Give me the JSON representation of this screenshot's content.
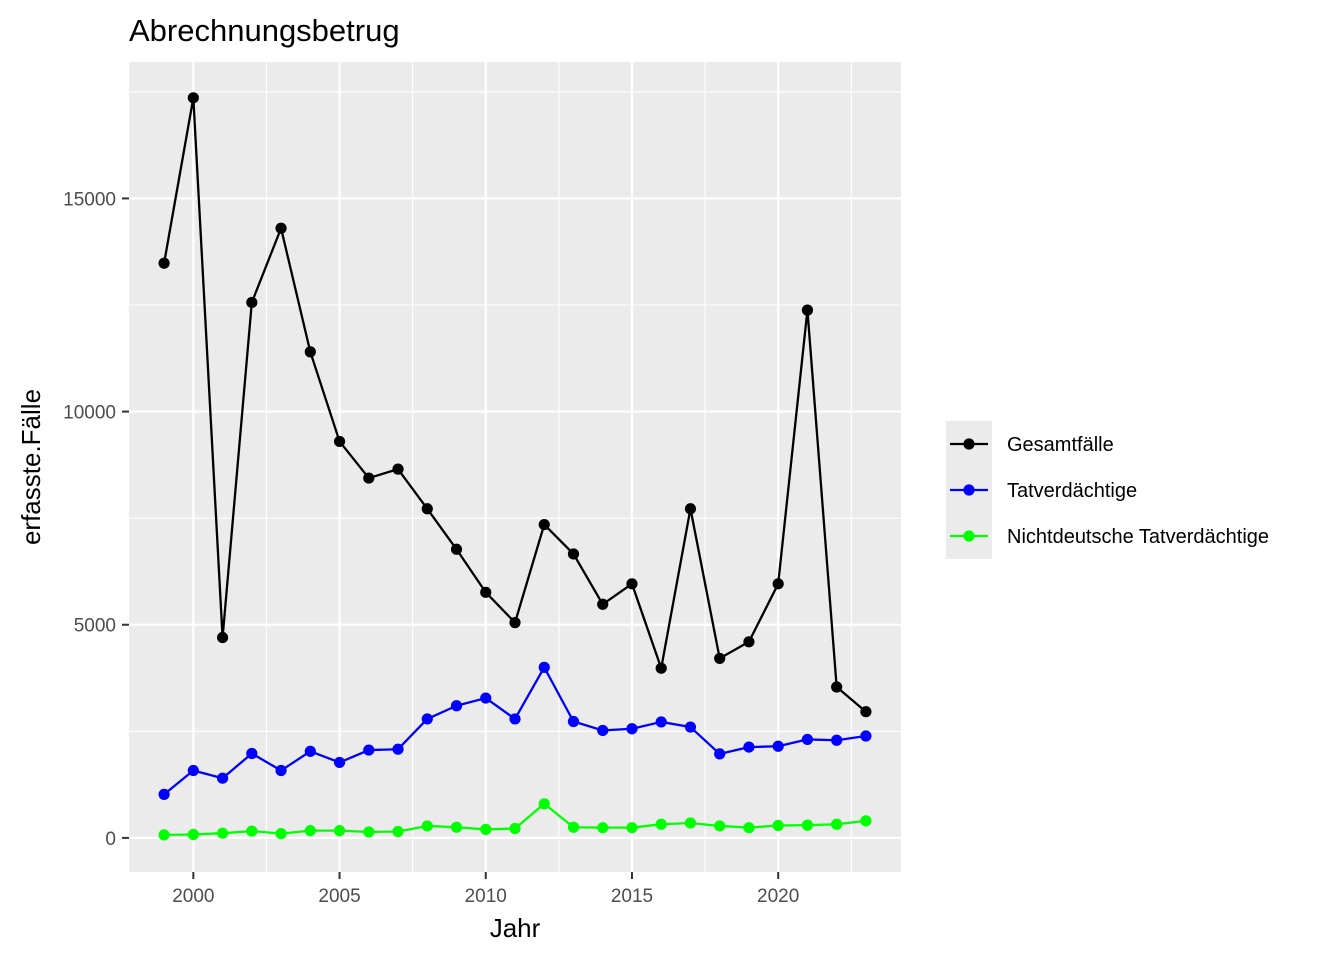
{
  "chart_data": {
    "type": "line",
    "title": "Abrechnungsbetrug",
    "xlabel": "Jahr",
    "ylabel": "erfasste.Fälle",
    "xlim": [
      1997.8,
      2024.2
    ],
    "ylim": [
      -800,
      18200
    ],
    "x_ticks": [
      2000,
      2005,
      2010,
      2015,
      2020
    ],
    "x_tick_labels": [
      "2000",
      "2005",
      "2010",
      "2015",
      "2020"
    ],
    "y_ticks": [
      0,
      5000,
      10000,
      15000
    ],
    "y_tick_labels": [
      "0",
      "5000",
      "10000",
      "15000"
    ],
    "grid": true,
    "legend_position": "right",
    "x": [
      1999,
      2000,
      2001,
      2002,
      2003,
      2004,
      2005,
      2006,
      2007,
      2008,
      2009,
      2010,
      2011,
      2012,
      2013,
      2014,
      2015,
      2016,
      2017,
      2018,
      2019,
      2020,
      2021,
      2022,
      2023
    ],
    "series": [
      {
        "name": "Gesamtfälle",
        "color": "#000000",
        "values": [
          13480,
          17360,
          4700,
          12560,
          14300,
          11400,
          9300,
          8440,
          8650,
          7720,
          6770,
          5760,
          5050,
          7350,
          6660,
          5480,
          5960,
          3980,
          7720,
          4210,
          4600,
          5960,
          12380,
          3540,
          2960
        ]
      },
      {
        "name": "Tatverdächtige",
        "color": "#0000ff",
        "values": [
          1020,
          1580,
          1400,
          1980,
          1580,
          2030,
          1770,
          2060,
          2080,
          2790,
          3100,
          3280,
          2790,
          4000,
          2730,
          2520,
          2560,
          2720,
          2600,
          1970,
          2130,
          2150,
          2310,
          2290,
          2390
        ]
      },
      {
        "name": "Nichtdeutsche Tatverdächtige",
        "color": "#00ff00",
        "values": [
          70,
          80,
          110,
          160,
          100,
          170,
          170,
          140,
          150,
          280,
          250,
          200,
          220,
          800,
          250,
          240,
          240,
          320,
          350,
          280,
          240,
          290,
          300,
          320,
          400
        ]
      }
    ]
  }
}
